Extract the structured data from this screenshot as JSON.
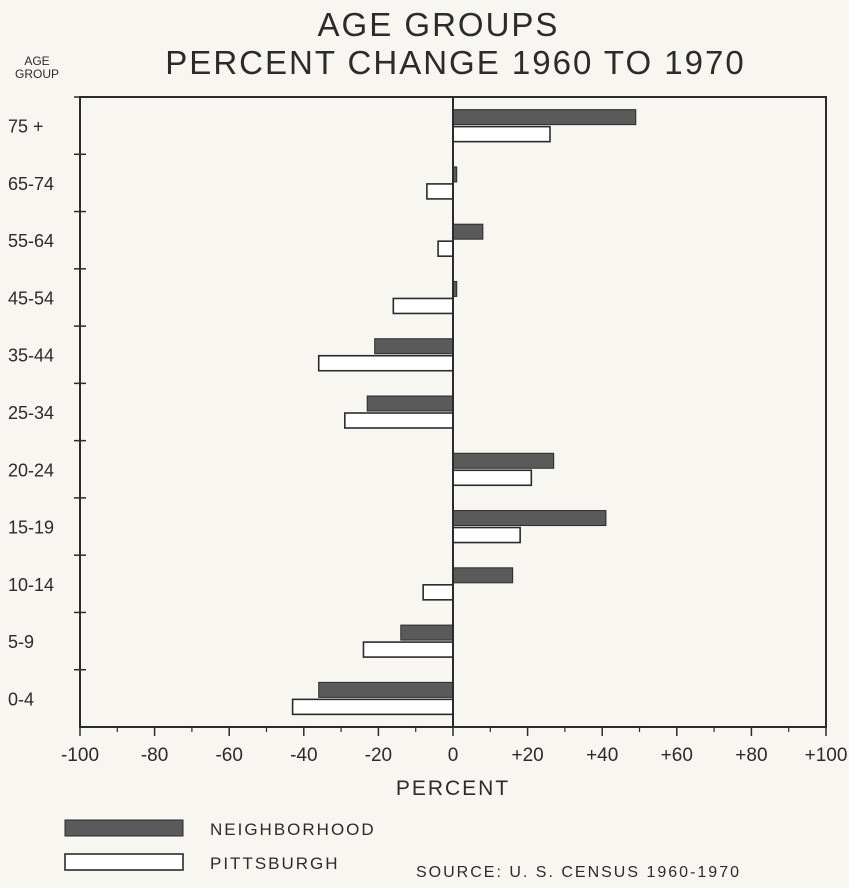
{
  "chart_data": {
    "type": "bar",
    "orientation": "horizontal",
    "title": "AGE GROUPS",
    "subtitle": "PERCENT CHANGE 1960 TO 1970",
    "ylabel": "AGE GROUP",
    "xlabel": "PERCENT",
    "categories": [
      "75 +",
      "65-74",
      "55-64",
      "45-54",
      "35-44",
      "25-34",
      "20-24",
      "15-19",
      "10-14",
      "5-9",
      "0-4"
    ],
    "series": [
      {
        "name": "NEIGHBORHOOD",
        "color": "#5a5a5a",
        "values": [
          49,
          1,
          8,
          1,
          -21,
          -23,
          27,
          41,
          16,
          -14,
          -36
        ]
      },
      {
        "name": "PITTSBURGH",
        "color": "#ffffff",
        "values": [
          26,
          -7,
          -4,
          -16,
          -36,
          -29,
          21,
          18,
          -8,
          -24,
          -43
        ]
      }
    ],
    "xlim": [
      -100,
      100
    ],
    "xticks": [
      "-100",
      "-80",
      "-60",
      "-40",
      "-20",
      "0",
      "+20",
      "+40",
      "+60",
      "+80",
      "+100"
    ],
    "grid": false,
    "legend_position": "bottom-left"
  },
  "source_text": "SOURCE:  U. S. CENSUS  1960-1970"
}
